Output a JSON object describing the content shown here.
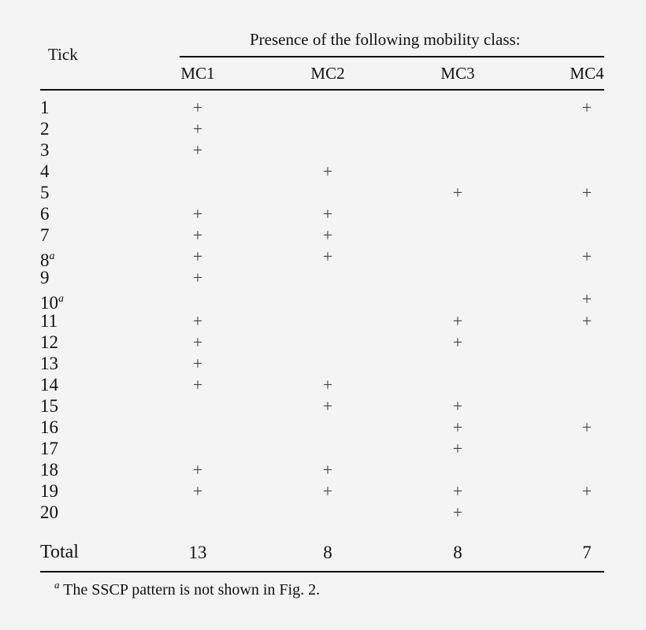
{
  "table": {
    "row_header": "Tick",
    "group_header": "Presence of the following mobility class:",
    "columns": [
      "MC1",
      "MC2",
      "MC3",
      "MC4"
    ],
    "presence_symbol": "+",
    "rows": [
      {
        "tick": "1",
        "footnote": "",
        "cells": [
          "+",
          "",
          "",
          "+"
        ]
      },
      {
        "tick": "2",
        "footnote": "",
        "cells": [
          "+",
          "",
          "",
          ""
        ]
      },
      {
        "tick": "3",
        "footnote": "",
        "cells": [
          "+",
          "",
          "",
          ""
        ]
      },
      {
        "tick": "4",
        "footnote": "",
        "cells": [
          "",
          "+",
          "",
          ""
        ]
      },
      {
        "tick": "5",
        "footnote": "",
        "cells": [
          "",
          "",
          "+",
          "+"
        ]
      },
      {
        "tick": "6",
        "footnote": "",
        "cells": [
          "+",
          "+",
          "",
          ""
        ]
      },
      {
        "tick": "7",
        "footnote": "",
        "cells": [
          "+",
          "+",
          "",
          ""
        ]
      },
      {
        "tick": "8",
        "footnote": "a",
        "cells": [
          "+",
          "+",
          "",
          "+"
        ]
      },
      {
        "tick": "9",
        "footnote": "",
        "cells": [
          "+",
          "",
          "",
          ""
        ]
      },
      {
        "tick": "10",
        "footnote": "a",
        "cells": [
          "",
          "",
          "",
          "+"
        ]
      },
      {
        "tick": "11",
        "footnote": "",
        "cells": [
          "+",
          "",
          "+",
          "+"
        ]
      },
      {
        "tick": "12",
        "footnote": "",
        "cells": [
          "+",
          "",
          "+",
          ""
        ]
      },
      {
        "tick": "13",
        "footnote": "",
        "cells": [
          "+",
          "",
          "",
          ""
        ]
      },
      {
        "tick": "14",
        "footnote": "",
        "cells": [
          "+",
          "+",
          "",
          ""
        ]
      },
      {
        "tick": "15",
        "footnote": "",
        "cells": [
          "",
          "+",
          "+",
          ""
        ]
      },
      {
        "tick": "16",
        "footnote": "",
        "cells": [
          "",
          "",
          "+",
          "+"
        ]
      },
      {
        "tick": "17",
        "footnote": "",
        "cells": [
          "",
          "",
          "+",
          ""
        ]
      },
      {
        "tick": "18",
        "footnote": "",
        "cells": [
          "+",
          "+",
          "",
          ""
        ]
      },
      {
        "tick": "19",
        "footnote": "",
        "cells": [
          "+",
          "+",
          "+",
          "+"
        ]
      },
      {
        "tick": "20",
        "footnote": "",
        "cells": [
          "",
          "",
          "+",
          ""
        ]
      }
    ],
    "total": {
      "label": "Total",
      "values": [
        "13",
        "8",
        "8",
        "7"
      ]
    },
    "footnote": {
      "marker": "a",
      "text": " The SSCP pattern is not shown in Fig. 2."
    }
  }
}
